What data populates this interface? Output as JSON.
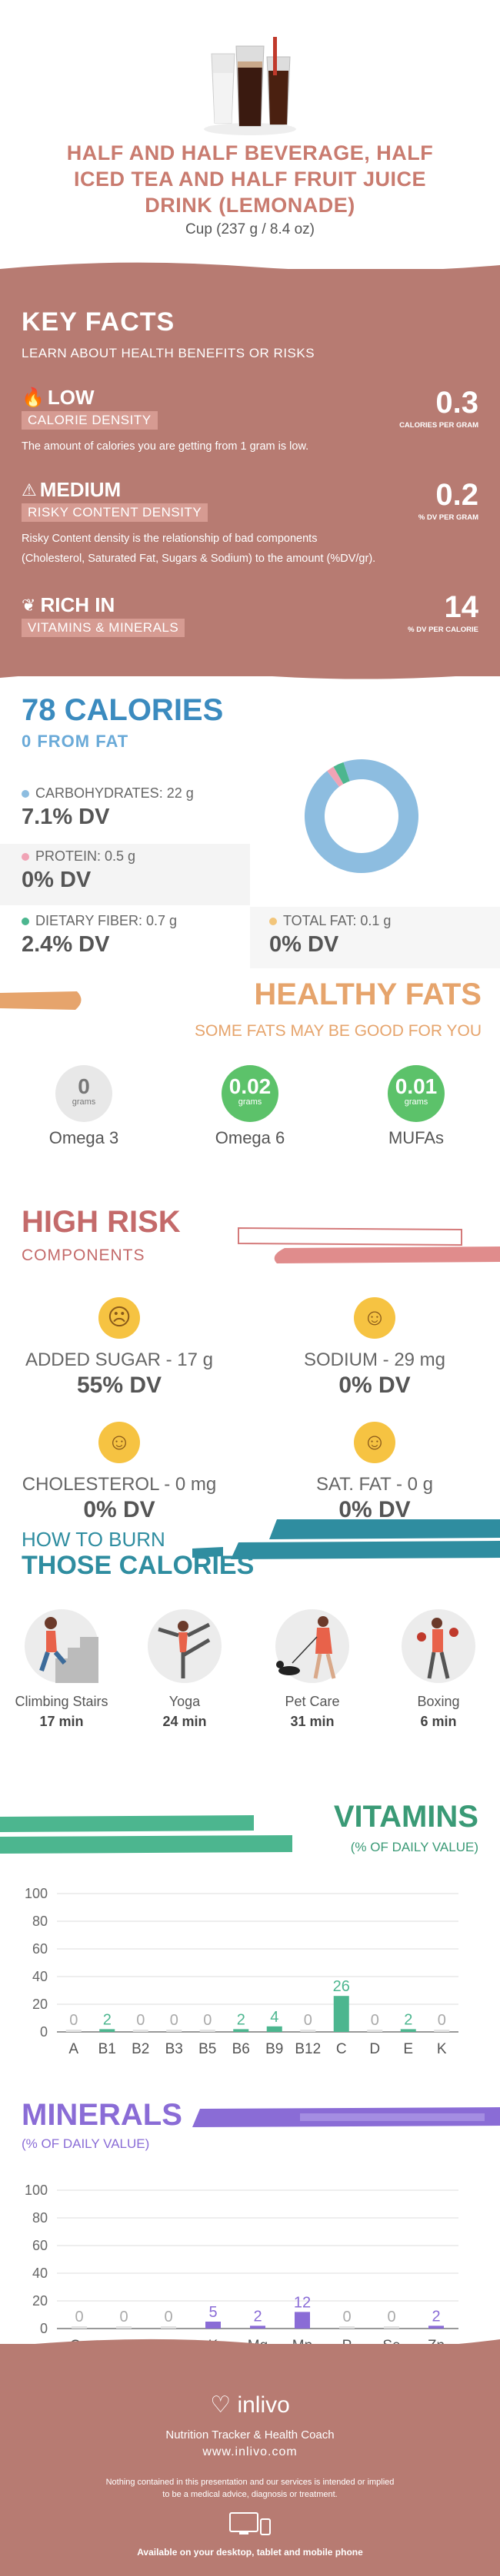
{
  "header": {
    "title_line1": "HALF AND HALF BEVERAGE, HALF",
    "title_line2": "ICED TEA AND HALF FRUIT JUICE",
    "title_line3": "DRINK (LEMONADE)",
    "serving": "Cup (237 g / 8.4 oz)"
  },
  "key_facts": {
    "title": "KEY FACTS",
    "subtitle": "LEARN ABOUT HEALTH BENEFITS OR RISKS",
    "items": [
      {
        "level": "LOW",
        "label": "CALORIE DENSITY",
        "value": "0.3",
        "unit": "CALORIES PER GRAM",
        "desc": "The amount of calories you are getting from 1 gram is low."
      },
      {
        "level": "MEDIUM",
        "label": "RISKY CONTENT DENSITY",
        "value": "0.2",
        "unit": "% DV PER GRAM",
        "desc1": "Risky Content density is the relationship of bad components",
        "desc2": "(Cholesterol, Saturated Fat, Sugars & Sodium) to the amount (%DV/gr)."
      },
      {
        "level": "RICH  IN",
        "label": "VITAMINS & MINERALS",
        "value": "14",
        "unit": "% DV PER CALORIE"
      }
    ]
  },
  "calories": {
    "title": "78 CALORIES",
    "subtitle": "0 FROM FAT",
    "carbs": {
      "label": "CARBOHYDRATES: 22 g",
      "dv": "7.1% DV",
      "color": "#8dbde0"
    },
    "protein": {
      "label": "PROTEIN: 0.5 g",
      "dv": "0% DV",
      "color": "#f0a3b5"
    },
    "fiber": {
      "label": "DIETARY FIBER: 0.7 g",
      "dv": "2.4% DV",
      "color": "#4cb68f"
    },
    "fat": {
      "label": "TOTAL FAT: 0.1 g",
      "dv": "0% DV",
      "color": "#f2c57a"
    },
    "donut": [
      {
        "name": "carbohydrates",
        "value": 22,
        "color": "#8dbde0"
      },
      {
        "name": "protein",
        "value": 0.5,
        "color": "#f0a3b5"
      },
      {
        "name": "fiber",
        "value": 0.7,
        "color": "#4cb68f"
      }
    ]
  },
  "healthy_fats": {
    "title": "HEALTHY FATS",
    "subtitle": "SOME FATS MAY BE GOOD FOR YOU",
    "items": [
      {
        "value": "0",
        "unit": "grams",
        "name": "Omega 3",
        "color": "#e8e8e8",
        "text_color": "#777"
      },
      {
        "value": "0.02",
        "unit": "grams",
        "name": "Omega 6",
        "color": "#5cc26a",
        "text_color": "#fff"
      },
      {
        "value": "0.01",
        "unit": "grams",
        "name": "MUFAs",
        "color": "#5cc26a",
        "text_color": "#fff"
      }
    ]
  },
  "high_risk": {
    "title": "HIGH RISK",
    "subtitle": "COMPONENTS",
    "items": [
      {
        "label": "ADDED SUGAR - 17 g",
        "dv": "55% DV",
        "face": "sad"
      },
      {
        "label": "SODIUM - 29 mg",
        "dv": "0% DV",
        "face": "happy"
      },
      {
        "label": "CHOLESTEROL - 0 mg",
        "dv": "0% DV",
        "face": "happy"
      },
      {
        "label": "SAT. FAT - 0 g",
        "dv": "0% DV",
        "face": "happy"
      }
    ]
  },
  "burn": {
    "title1": "HOW TO BURN",
    "title2": "THOSE CALORIES",
    "activities": [
      {
        "name": "Climbing Stairs",
        "time": "17 min",
        "icon": "stairs-icon"
      },
      {
        "name": "Yoga",
        "time": "24 min",
        "icon": "yoga-icon"
      },
      {
        "name": "Pet Care",
        "time": "31 min",
        "icon": "dog-walking-icon"
      },
      {
        "name": "Boxing",
        "time": "6 min",
        "icon": "boxing-icon"
      }
    ]
  },
  "vitamins": {
    "title": "VITAMINS",
    "subtitle": "(% OF DAILY VALUE)"
  },
  "minerals": {
    "title": "MINERALS",
    "subtitle": "(% OF DAILY VALUE)"
  },
  "chart_data": [
    {
      "type": "bar",
      "categories": [
        "A",
        "B1",
        "B2",
        "B3",
        "B5",
        "B6",
        "B9",
        "B12",
        "C",
        "D",
        "E",
        "K"
      ],
      "values": [
        0,
        2,
        0,
        0,
        0,
        2,
        4,
        0,
        26,
        0,
        2,
        0
      ],
      "ylim": [
        0,
        100
      ],
      "yticks": [
        0,
        20,
        40,
        60,
        80,
        100
      ],
      "grid": true,
      "color": "#4cb68f"
    },
    {
      "type": "bar",
      "categories": [
        "Ca",
        "Cu",
        "Fe",
        "K",
        "Mg",
        "Mn",
        "P",
        "Se",
        "Zn"
      ],
      "values": [
        0,
        0,
        0,
        5,
        2,
        12,
        0,
        0,
        2
      ],
      "ylim": [
        0,
        100
      ],
      "yticks": [
        0,
        20,
        40,
        60,
        80,
        100
      ],
      "grid": true,
      "color": "#8a6cd6"
    }
  ],
  "footer": {
    "brand": "inlivo",
    "tagline": "Nutrition Tracker & Health Coach",
    "url": "www.inlivo.com",
    "disclaimer1": "Nothing contained in this presentation and our services is intended or implied",
    "disclaimer2": "to be a medical advice, diagnosis or treatment.",
    "available": "Available on your desktop, tablet and mobile phone"
  }
}
